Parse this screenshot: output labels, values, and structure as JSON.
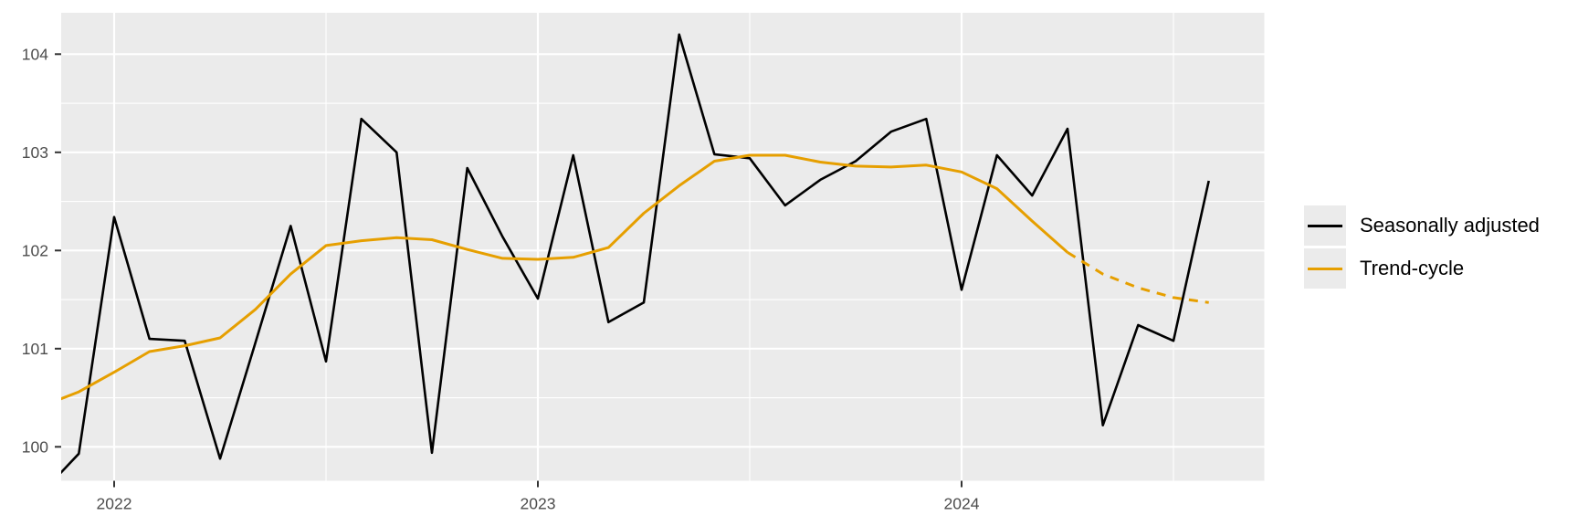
{
  "chart_data": {
    "type": "line",
    "title": "",
    "xlabel": "",
    "ylabel": "",
    "grid": true,
    "legend_position": "right",
    "panel_background_color": "#ebebeb",
    "gridline_color": "#ffffff",
    "axis_text_color": "#4d4d4d",
    "tick_mark_color": "#333333",
    "ylim": [
      99.66,
      104.42
    ],
    "y_ticks": [
      100,
      101,
      102,
      103,
      104
    ],
    "y_tick_labels": [
      "100",
      "101",
      "102",
      "103",
      "104"
    ],
    "y_minor_ticks": [
      100.5,
      101.5,
      102.5,
      103.5
    ],
    "x_ticks": [
      {
        "label": "2022",
        "month_index": 2
      },
      {
        "label": "2023",
        "month_index": 14
      },
      {
        "label": "2024",
        "month_index": 26
      }
    ],
    "x_minor_tick_month_indices": [
      8,
      20,
      32
    ],
    "months": [
      "2021 Nov",
      "2021 Dec",
      "2022 Jan",
      "2022 Feb",
      "2022 Mar",
      "2022 Apr",
      "2022 May",
      "2022 Jun",
      "2022 Jul",
      "2022 Aug",
      "2022 Sep",
      "2022 Oct",
      "2022 Nov",
      "2022 Dec",
      "2023 Jan",
      "2023 Feb",
      "2023 Mar",
      "2023 Apr",
      "2023 May",
      "2023 Jun",
      "2023 Jul",
      "2023 Aug",
      "2023 Sep",
      "2023 Oct",
      "2023 Nov",
      "2023 Dec",
      "2024 Jan",
      "2024 Feb",
      "2024 Mar",
      "2024 Apr",
      "2024 May",
      "2024 Jun",
      "2024 Jul",
      "2024 Aug"
    ],
    "series": [
      {
        "name": "Seasonally adjusted",
        "color": "#000000",
        "style": "solid",
        "stroke_width": 2.6,
        "values": [
          99.55,
          99.93,
          102.34,
          101.1,
          101.08,
          99.88,
          101.06,
          102.25,
          100.87,
          103.34,
          103.0,
          99.94,
          102.84,
          102.14,
          101.51,
          102.97,
          101.27,
          101.47,
          104.2,
          102.98,
          102.94,
          102.46,
          102.72,
          102.91,
          103.21,
          103.34,
          101.6,
          102.97,
          102.56,
          103.24,
          100.22,
          101.24,
          101.08,
          102.71
        ]
      },
      {
        "name": "Trend-cycle",
        "color": "#E69F00",
        "style": "solid",
        "stroke_width": 3,
        "values": [
          100.42,
          100.56,
          100.76,
          100.97,
          101.03,
          101.11,
          101.4,
          101.76,
          102.05,
          102.1,
          102.13,
          102.11,
          102.01,
          101.92,
          101.91,
          101.93,
          102.03,
          102.38,
          102.66,
          102.91,
          102.97,
          102.97,
          102.9,
          102.86,
          102.85,
          102.87,
          102.8,
          102.63,
          102.3,
          101.98,
          null,
          null,
          null,
          null
        ]
      },
      {
        "name": "Trend-cycle (dashed extension)",
        "color": "#E69F00",
        "style": "dashed",
        "stroke_width": 3,
        "values": [
          null,
          null,
          null,
          null,
          null,
          null,
          null,
          null,
          null,
          null,
          null,
          null,
          null,
          null,
          null,
          null,
          null,
          null,
          null,
          null,
          null,
          null,
          null,
          null,
          null,
          null,
          null,
          null,
          null,
          101.98,
          101.76,
          101.62,
          101.52,
          101.47
        ]
      }
    ]
  },
  "legend": {
    "items": [
      {
        "label": "Seasonally adjusted",
        "color": "#000000"
      },
      {
        "label": "Trend-cycle",
        "color": "#E69F00"
      }
    ]
  }
}
